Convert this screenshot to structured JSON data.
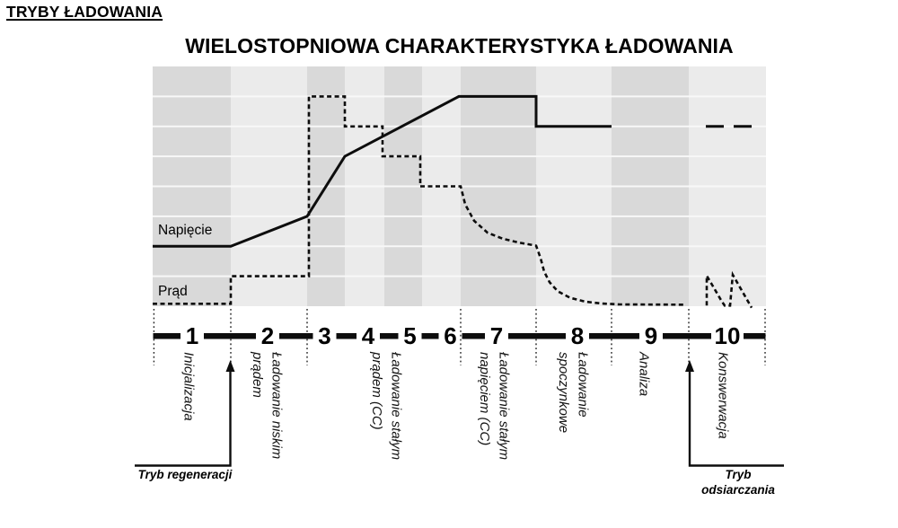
{
  "header": {
    "title": "TRYBY ŁADOWANIA"
  },
  "annotations": {
    "regeneration": "Tryb regeneracji",
    "desulfation": "Tryb\nodsiarczania"
  },
  "colors": {
    "band_dark": "#d9d9d9",
    "band_light": "#ebebeb",
    "gridline": "#f8f8f8",
    "line": "#0d0d0d"
  },
  "chart_data": {
    "type": "line",
    "title": "WIELOSTOPNIOWA CHARAKTERYSTYKA ŁADOWANIA",
    "xlabel": "",
    "ylabel": "",
    "x_axis_note": "relative time, 0-100 (axis unlabeled in figure; 10 charging stages)",
    "y_axis_note": "relative level in gridline rows, 0 = bottom, 8 = top (axis unlabeled in figure)",
    "xlim": [
      0,
      100
    ],
    "ylim": [
      0,
      8
    ],
    "grid": true,
    "legend_position": "inline-left",
    "stage_boundaries_t": [
      0,
      12.74,
      25.18,
      31.33,
      37.77,
      43.92,
      50.22,
      62.52,
      74.82,
      87.41,
      100
    ],
    "separators_t": [
      0.2,
      12.74,
      25.18,
      50.22,
      62.52,
      74.82,
      87.41,
      99.85
    ],
    "stage_numbers": [
      {
        "n": "1",
        "t": 6.44
      },
      {
        "n": "2",
        "t": 18.74
      },
      {
        "n": "3",
        "t": 28.04
      },
      {
        "n": "4",
        "t": 35.14
      },
      {
        "n": "5",
        "t": 41.95
      },
      {
        "n": "6",
        "t": 48.54
      },
      {
        "n": "7",
        "t": 56.08
      },
      {
        "n": "8",
        "t": 69.25
      },
      {
        "n": "9",
        "t": 81.26
      },
      {
        "n": "10",
        "t": 93.7
      }
    ],
    "stage_groups": [
      {
        "stages": "1",
        "t": 5.86,
        "label": "Inicjalizacja"
      },
      {
        "stages": "2",
        "t": 18.6,
        "label": "Ładowanie niskim\nprądem"
      },
      {
        "stages": "3-6",
        "t": 38.07,
        "label": "Ładowanie stałym\nprądem (CC)"
      },
      {
        "stages": "7",
        "t": 55.64,
        "label": "Ładowanie stałym\nnapięciem (CC)"
      },
      {
        "stages": "8",
        "t": 68.52,
        "label": "Ładowanie\nspoczynkowe"
      },
      {
        "stages": "9",
        "t": 80.1,
        "label": "Analiza"
      },
      {
        "stages": "10",
        "t": 92.97,
        "label": "Konswerwacja"
      }
    ],
    "series": [
      {
        "name": "Napięcie",
        "style": "solid",
        "segments": [
          [
            [
              0,
              2
            ],
            [
              12.74,
              2
            ],
            [
              25.18,
              3
            ],
            [
              31.33,
              5
            ],
            [
              49.93,
              7
            ],
            [
              62.52,
              7
            ],
            [
              62.52,
              6
            ],
            [
              74.82,
              6
            ]
          ],
          [
            [
              90.19,
              6
            ],
            [
              93.12,
              6
            ]
          ],
          [
            [
              94.73,
              6
            ],
            [
              97.66,
              6
            ]
          ]
        ]
      },
      {
        "name": "Prąd",
        "style": "dashed",
        "segments": [
          [
            [
              0,
              0.08
            ],
            [
              12.74,
              0.08
            ],
            [
              12.74,
              1
            ],
            [
              25.48,
              1
            ],
            [
              25.48,
              7
            ],
            [
              31.33,
              7
            ],
            [
              31.33,
              6
            ],
            [
              37.48,
              6
            ],
            [
              37.48,
              5
            ],
            [
              43.63,
              5
            ],
            [
              43.63,
              4
            ],
            [
              50.22,
              4
            ],
            [
              50.95,
              3.4
            ],
            [
              52.42,
              2.85
            ],
            [
              54.61,
              2.45
            ],
            [
              57.1,
              2.25
            ],
            [
              59.74,
              2.12
            ],
            [
              62.52,
              2.02
            ],
            [
              63.25,
              1.6
            ],
            [
              63.84,
              1.15
            ],
            [
              64.71,
              0.8
            ],
            [
              66.03,
              0.5
            ],
            [
              68.08,
              0.28
            ],
            [
              70.57,
              0.15
            ],
            [
              73.21,
              0.09
            ],
            [
              76.13,
              0.06
            ],
            [
              86.68,
              0.05
            ]
          ],
          [
            [
              90.34,
              0.02
            ],
            [
              90.34,
              1.02
            ],
            [
              92.83,
              0.15
            ],
            [
              93.27,
              0.02
            ],
            [
              94.14,
              0.02
            ],
            [
              94.58,
              1.05
            ],
            [
              97.66,
              -0.05
            ]
          ]
        ]
      }
    ]
  }
}
